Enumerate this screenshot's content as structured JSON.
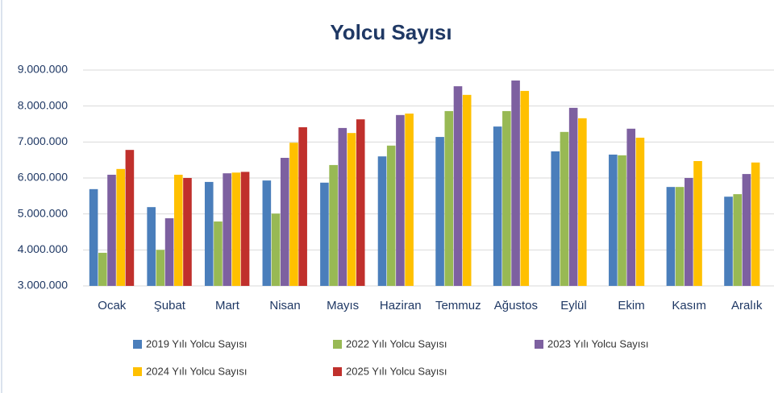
{
  "chart_data": {
    "type": "bar",
    "title": "Yolcu Sayısı",
    "categories": [
      "Ocak",
      "Şubat",
      "Mart",
      "Nisan",
      "Mayıs",
      "Haziran",
      "Temmuz",
      "Ağustos",
      "Eylül",
      "Ekim",
      "Kasım",
      "Aralık"
    ],
    "series": [
      {
        "name": "2019 Yılı Yolcu Sayısı",
        "color": "#4a7ebb",
        "values": [
          5690000,
          5190000,
          5890000,
          5930000,
          5870000,
          6600000,
          7140000,
          7430000,
          6740000,
          6650000,
          5750000,
          5480000
        ]
      },
      {
        "name": "2022 Yılı Yolcu Sayısı",
        "color": "#98b954",
        "values": [
          3920000,
          4000000,
          4790000,
          5010000,
          6360000,
          6900000,
          7860000,
          7860000,
          7280000,
          6630000,
          5750000,
          5550000
        ]
      },
      {
        "name": "2023 Yılı Yolcu Sayısı",
        "color": "#7d60a0",
        "values": [
          6090000,
          4880000,
          6130000,
          6560000,
          7390000,
          7750000,
          8550000,
          8710000,
          7950000,
          7370000,
          6000000,
          6110000
        ]
      },
      {
        "name": "2024 Yılı Yolcu Sayısı",
        "color": "#ffc000",
        "values": [
          6250000,
          6090000,
          6150000,
          6980000,
          7250000,
          7790000,
          8310000,
          8420000,
          7660000,
          7120000,
          6470000,
          6430000
        ]
      },
      {
        "name": "2025 Yılı Yolcu Sayısı",
        "color": "#c0302c",
        "values": [
          6780000,
          6000000,
          6170000,
          7410000,
          7630000,
          null,
          null,
          null,
          null,
          null,
          null,
          null
        ]
      }
    ],
    "ylim": [
      3000000,
      9000000
    ],
    "yticks": [
      {
        "value": 3000000,
        "label": "3.000.000"
      },
      {
        "value": 4000000,
        "label": "4.000.000"
      },
      {
        "value": 5000000,
        "label": "5.000.000"
      },
      {
        "value": 6000000,
        "label": "6.000.000"
      },
      {
        "value": 7000000,
        "label": "7.000.000"
      },
      {
        "value": 8000000,
        "label": "8.000.000"
      },
      {
        "value": 9000000,
        "label": "9.000.000"
      }
    ],
    "grid": true
  }
}
